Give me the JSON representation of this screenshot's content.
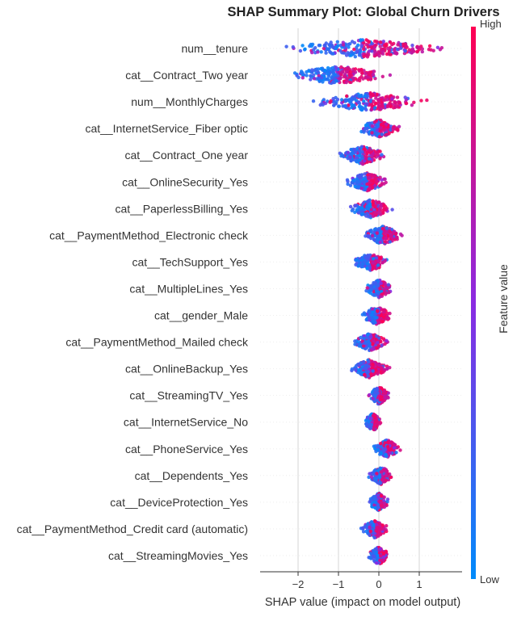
{
  "chart_data": {
    "type": "scatter",
    "subtype": "shap-beeswarm",
    "title": "SHAP Summary Plot: Global Churn Drivers",
    "xlabel": "SHAP value (impact on model output)",
    "ylabel": "",
    "xlim": [
      -2.9,
      2.0
    ],
    "xticks": [
      -2,
      -1,
      0,
      1
    ],
    "grid": "vertical-lines",
    "colorbar": {
      "label": "Feature value",
      "high_label": "High",
      "low_label": "Low",
      "high_color": "#ff0052",
      "low_color": "#008bfb",
      "placement": "right"
    },
    "features": [
      {
        "name": "num__tenure",
        "min": -2.6,
        "max": 1.8
      },
      {
        "name": "cat__Contract_Two year",
        "min": -2.4,
        "max": 0.4
      },
      {
        "name": "num__MonthlyCharges",
        "min": -1.9,
        "max": 1.4
      },
      {
        "name": "cat__InternetService_Fiber optic",
        "min": -0.6,
        "max": 0.6
      },
      {
        "name": "cat__Contract_One year",
        "min": -1.1,
        "max": 0.3
      },
      {
        "name": "cat__OnlineSecurity_Yes",
        "min": -0.9,
        "max": 0.3
      },
      {
        "name": "cat__PaperlessBilling_Yes",
        "min": -0.8,
        "max": 0.4
      },
      {
        "name": "cat__PaymentMethod_Electronic check",
        "min": -0.5,
        "max": 0.7
      },
      {
        "name": "cat__TechSupport_Yes",
        "min": -0.7,
        "max": 0.3
      },
      {
        "name": "cat__MultipleLines_Yes",
        "min": -0.4,
        "max": 0.4
      },
      {
        "name": "cat__gender_Male",
        "min": -0.5,
        "max": 0.4
      },
      {
        "name": "cat__PaymentMethod_Mailed check",
        "min": -0.7,
        "max": 0.3
      },
      {
        "name": "cat__OnlineBackup_Yes",
        "min": -0.8,
        "max": 0.3
      },
      {
        "name": "cat__StreamingTV_Yes",
        "min": -0.3,
        "max": 0.3
      },
      {
        "name": "cat__InternetService_No",
        "min": -0.4,
        "max": 0.1
      },
      {
        "name": "cat__PhoneService_Yes",
        "min": -0.2,
        "max": 0.6
      },
      {
        "name": "cat__Dependents_Yes",
        "min": -0.3,
        "max": 0.4
      },
      {
        "name": "cat__DeviceProtection_Yes",
        "min": -0.3,
        "max": 0.3
      },
      {
        "name": "cat__PaymentMethod_Credit card (automatic)",
        "min": -0.5,
        "max": 0.3
      },
      {
        "name": "cat__StreamingMovies_Yes",
        "min": -0.3,
        "max": 0.3
      }
    ]
  }
}
